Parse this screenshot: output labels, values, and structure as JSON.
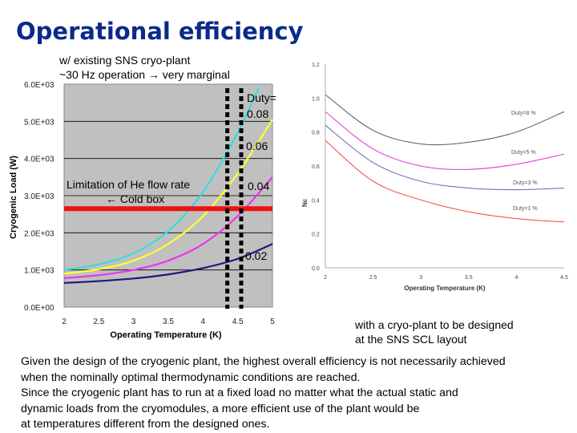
{
  "title": "Operational efficiency",
  "subnote": {
    "line1": "w/ existing SNS cryo-plant",
    "line2": "~30 Hz operation → very marginal"
  },
  "right_note": {
    "line1": "with a cryo-plant to be designed",
    "line2": "at the SNS SCL layout"
  },
  "paragraph": [
    "Given the design of the cryogenic plant, the highest overall efficiency is not necessarily achieved",
    "when the nominally optimal thermodynamic conditions are reached.",
    "Since the cryogenic plant has to run at a fixed load no matter what the actual static and",
    "dynamic loads from the cryomodules, a more efficient use of the plant would be",
    "at temperatures different from the designed ones."
  ],
  "chart_data": [
    {
      "type": "line",
      "xlabel": "Operating Temperature (K)",
      "ylabel": "Cryogenic Load (W)",
      "xlim": [
        2,
        5
      ],
      "ylim": [
        0,
        6000
      ],
      "xticks": [
        "2",
        "2.5",
        "3",
        "3.5",
        "4",
        "4.5",
        "5"
      ],
      "yticks": [
        "0.0E+00",
        "1.0E+03",
        "2.0E+03",
        "3.0E+03",
        "4.0E+03",
        "5.0E+03",
        "6.0E+03"
      ],
      "background": "#c0c0c0",
      "series": [
        {
          "name": "Duty= 0.08",
          "color": "#33dddd",
          "x": [
            2,
            2.5,
            3,
            3.5,
            4,
            4.5,
            4.8
          ],
          "y": [
            1000,
            1150,
            1450,
            2050,
            3100,
            4700,
            5900
          ]
        },
        {
          "name": "0.06",
          "color": "#ffff33",
          "x": [
            2,
            2.5,
            3,
            3.5,
            4,
            4.5,
            5
          ],
          "y": [
            900,
            1020,
            1250,
            1700,
            2450,
            3600,
            5050
          ]
        },
        {
          "name": "0.04",
          "color": "#ee33ee",
          "x": [
            2,
            2.5,
            3,
            3.5,
            4,
            4.5,
            5
          ],
          "y": [
            780,
            860,
            1000,
            1250,
            1700,
            2450,
            3500
          ]
        },
        {
          "name": "0.02",
          "color": "#1a1a7a",
          "x": [
            2,
            2.5,
            3,
            3.5,
            4,
            4.5,
            5
          ],
          "y": [
            650,
            700,
            770,
            880,
            1050,
            1300,
            1700
          ]
        }
      ],
      "annotations": {
        "limit_label_1": "Limitation of He flow rate",
        "limit_label_2": "← Cold box",
        "limit_value": 2650,
        "limit_color": "#ee1111",
        "dashed_x": [
          4.35,
          4.55
        ]
      }
    },
    {
      "type": "line",
      "xlabel": "Operating Temperature (K)",
      "ylabel": "Nc",
      "xlim": [
        2,
        4.5
      ],
      "ylim": [
        0,
        1.2
      ],
      "xticks": [
        "2",
        "2.5",
        "3",
        "3.5",
        "4",
        "4.5"
      ],
      "yticks": [
        "0.0",
        "0.2",
        "0.4",
        "0.6",
        "0.8",
        "1.0",
        "1.2"
      ],
      "series": [
        {
          "name": "Duty=8 %",
          "color": "#555577",
          "x": [
            2,
            2.5,
            3,
            3.5,
            4,
            4.5
          ],
          "y": [
            1.02,
            0.81,
            0.73,
            0.74,
            0.8,
            0.92
          ]
        },
        {
          "name": "Duty=5 %",
          "color": "#dd33dd",
          "x": [
            2,
            2.5,
            3,
            3.5,
            4,
            4.5
          ],
          "y": [
            0.92,
            0.7,
            0.6,
            0.58,
            0.61,
            0.67
          ]
        },
        {
          "name": "Duty=3 %",
          "color": "#6666aa",
          "x": [
            2,
            2.5,
            3,
            3.5,
            4,
            4.5
          ],
          "y": [
            0.84,
            0.62,
            0.51,
            0.47,
            0.46,
            0.47
          ]
        },
        {
          "name": "Duty=1 %",
          "color": "#ee4444",
          "x": [
            2,
            2.5,
            3,
            3.5,
            4,
            4.5
          ],
          "y": [
            0.75,
            0.51,
            0.4,
            0.33,
            0.29,
            0.27
          ]
        }
      ]
    }
  ]
}
